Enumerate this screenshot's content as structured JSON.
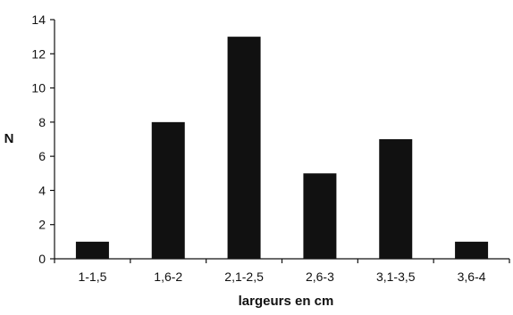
{
  "chart_data": {
    "type": "bar",
    "title": "",
    "xlabel": "largeurs en cm",
    "ylabel": "N",
    "categories": [
      "1-1,5",
      "1,6-2",
      "2,1-2,5",
      "2,6-3",
      "3,1-3,5",
      "3,6-4"
    ],
    "values": [
      1,
      8,
      13,
      5,
      7,
      1
    ],
    "ylim": [
      0,
      14
    ],
    "yticks": [
      0,
      2,
      4,
      6,
      8,
      10,
      12,
      14
    ],
    "grid": false,
    "legend": "none",
    "bar_color": "#111111"
  }
}
